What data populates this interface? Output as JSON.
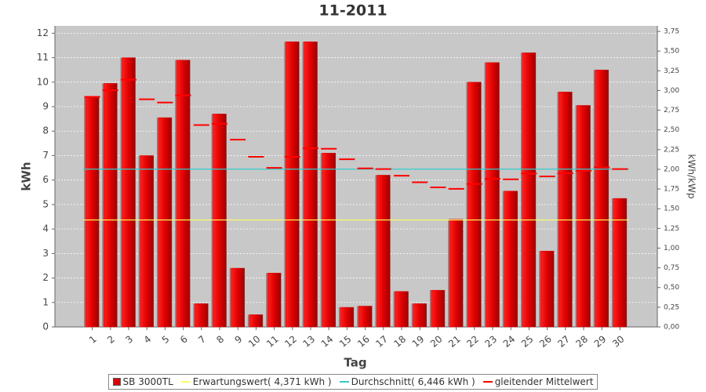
{
  "chart_data": {
    "type": "bar",
    "title": "11-2011",
    "x_label": "Tag",
    "y_label": "kWh",
    "y2_label": "kWh/kWp",
    "categories": [
      "1",
      "2",
      "3",
      "4",
      "5",
      "6",
      "7",
      "8",
      "9",
      "10",
      "11",
      "12",
      "13",
      "14",
      "15",
      "16",
      "17",
      "18",
      "19",
      "20",
      "21",
      "22",
      "23",
      "24",
      "25",
      "26",
      "27",
      "28",
      "29",
      "30"
    ],
    "series": [
      {
        "name": "SB 3000TL",
        "type": "bar",
        "color": "#dd0000",
        "values": [
          9.4,
          9.95,
          11.0,
          7.0,
          8.55,
          10.9,
          0.95,
          8.7,
          2.4,
          0.5,
          2.2,
          11.65,
          11.65,
          7.1,
          0.8,
          0.85,
          6.2,
          1.45,
          0.95,
          1.5,
          4.4,
          10.0,
          10.8,
          5.55,
          11.2,
          3.1,
          9.6,
          9.05,
          10.5,
          5.25
        ]
      },
      {
        "name": "gleitender Mittelwert",
        "type": "dash",
        "color": "#ff0000",
        "values": [
          9.4,
          9.67,
          10.1,
          9.3,
          9.17,
          9.46,
          8.25,
          8.3,
          7.65,
          6.95,
          6.5,
          6.95,
          7.3,
          7.28,
          6.85,
          6.48,
          6.45,
          6.18,
          5.91,
          5.7,
          5.64,
          5.84,
          6.05,
          6.03,
          6.27,
          6.15,
          6.28,
          6.38,
          6.52,
          6.45
        ]
      }
    ],
    "reference_lines": [
      {
        "name": "Erwartungswert( 4,371 kWh )",
        "value": 4.371,
        "color": "#ffff66"
      },
      {
        "name": "Durchschnitt( 6,446 kWh )",
        "value": 6.446,
        "color": "#33cccc"
      }
    ],
    "ylim": [
      0,
      12.3
    ],
    "yticks": [
      0,
      1,
      2,
      3,
      4,
      5,
      6,
      7,
      8,
      9,
      10,
      11,
      12
    ],
    "y2lim": [
      0,
      3.82
    ],
    "y2ticks": [
      {
        "value": 0,
        "label": "0,00"
      },
      {
        "value": 0.25,
        "label": "0,25"
      },
      {
        "value": 0.5,
        "label": "0,50"
      },
      {
        "value": 0.75,
        "label": "0,75"
      },
      {
        "value": 1,
        "label": "1,00"
      },
      {
        "value": 1.25,
        "label": "1,25"
      },
      {
        "value": 1.5,
        "label": "1,50"
      },
      {
        "value": 1.75,
        "label": "1,75"
      },
      {
        "value": 2,
        "label": "2,00"
      },
      {
        "value": 2.25,
        "label": "2,25"
      },
      {
        "value": 2.5,
        "label": "2,50"
      },
      {
        "value": 2.75,
        "label": "2,75"
      },
      {
        "value": 3,
        "label": "3,00"
      },
      {
        "value": 3.25,
        "label": "3,25"
      },
      {
        "value": 3.5,
        "label": "3,50"
      },
      {
        "value": 3.75,
        "label": "3,75"
      }
    ],
    "grid": true
  }
}
